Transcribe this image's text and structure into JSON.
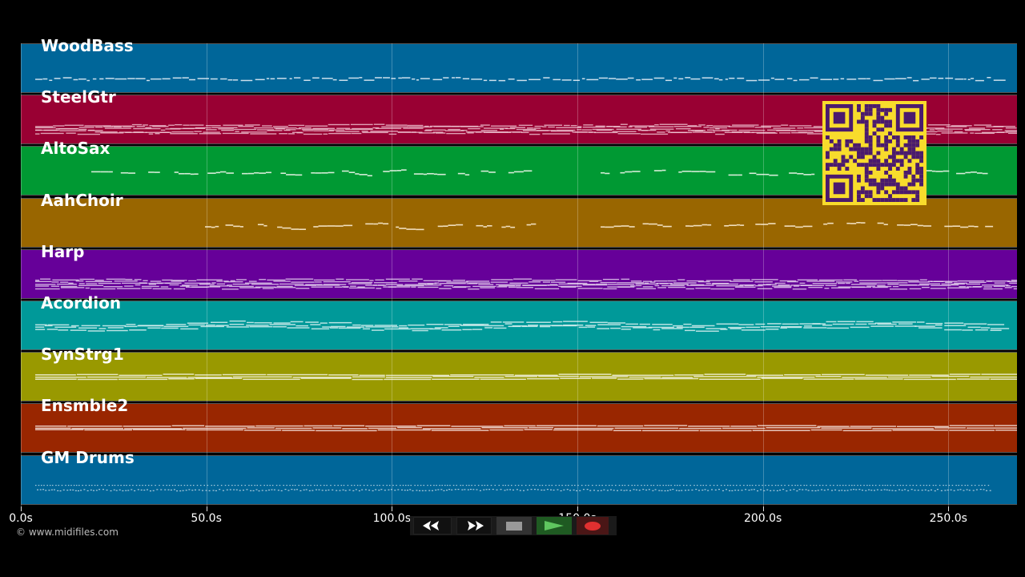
{
  "tracks": [
    {
      "name": "WoodBass",
      "color": "#006699",
      "density": "sparse-line",
      "line_color": "#d7e6f0"
    },
    {
      "name": "SteelGtr",
      "color": "#990033",
      "density": "dense",
      "line_color": "#f0c8d4"
    },
    {
      "name": "AltoSax",
      "color": "#009933",
      "density": "melody-alto",
      "line_color": "#e0f0e0"
    },
    {
      "name": "AahChoir",
      "color": "#996600",
      "density": "melody-choir",
      "line_color": "#f5e6c8"
    },
    {
      "name": "Harp",
      "color": "#660099",
      "density": "dense",
      "line_color": "#e8d8f0"
    },
    {
      "name": "Acordion",
      "color": "#009999",
      "density": "medium",
      "line_color": "#d8f0f0"
    },
    {
      "name": "SynStrg1",
      "color": "#999900",
      "density": "sustain",
      "line_color": "#f0f0d8"
    },
    {
      "name": "Ensmble2",
      "color": "#992600",
      "density": "sustain",
      "line_color": "#f0d8d0"
    },
    {
      "name": "GM Drums",
      "color": "#006699",
      "density": "drums",
      "line_color": "#d7e6f0"
    }
  ],
  "axis": {
    "ticks": [
      {
        "label": "0.0s",
        "value": 0
      },
      {
        "label": "50.0s",
        "value": 50
      },
      {
        "label": "100.0s",
        "value": 100
      },
      {
        "label": "150.0s",
        "value": 150
      },
      {
        "label": "200.0s",
        "value": 200
      },
      {
        "label": "250.0s",
        "value": 250
      }
    ],
    "max_seconds": 268.5
  },
  "footer": {
    "copyright": "© www.midifiles.com"
  },
  "controls": {
    "rewind": "rewind",
    "fast_forward": "fast-forward",
    "stop": "stop",
    "play": "play",
    "record": "record"
  },
  "qr": {
    "fg": "#4a1a6e",
    "bg": "#f8dc2c"
  }
}
